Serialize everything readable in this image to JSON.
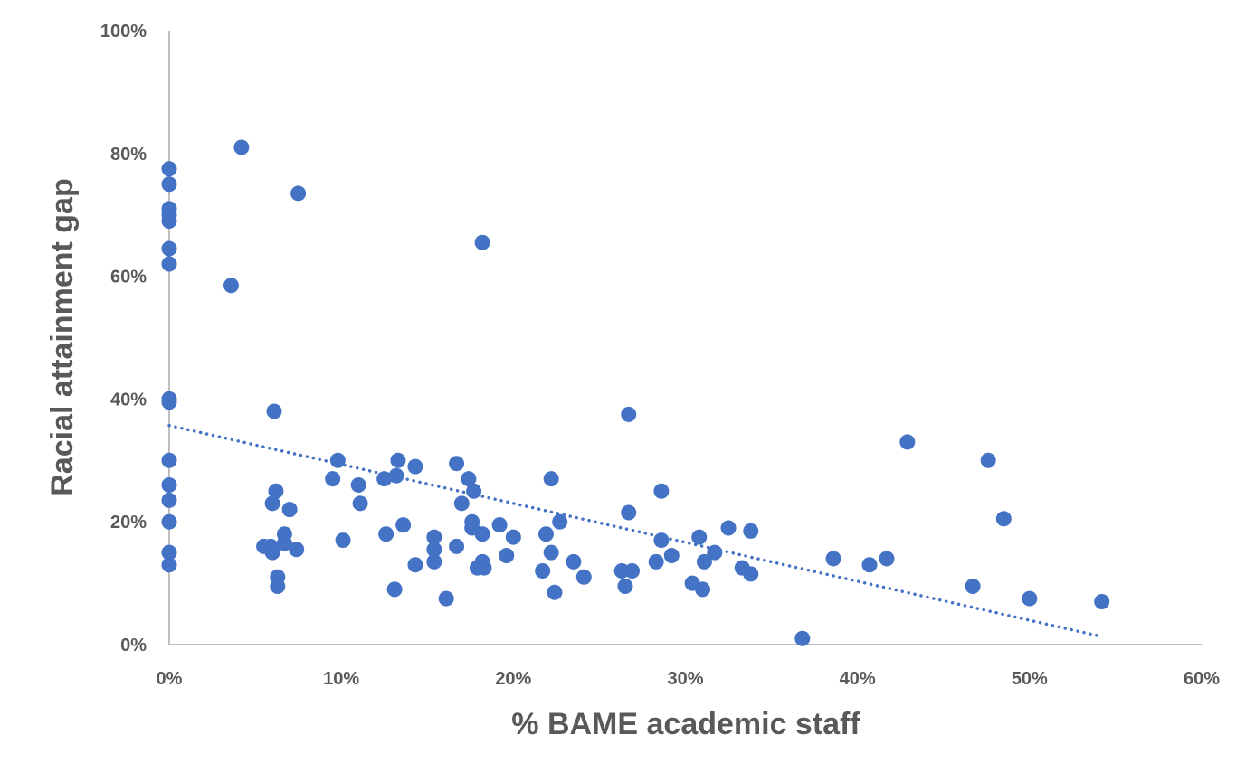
{
  "chart_data": {
    "type": "scatter",
    "title": "",
    "xlabel": "% BAME academic staff",
    "ylabel": "Racial attainment gap",
    "xlim": [
      0,
      60
    ],
    "ylim": [
      0,
      100
    ],
    "x_ticks": [
      "0%",
      "10%",
      "20%",
      "30%",
      "40%",
      "50%",
      "60%"
    ],
    "y_ticks": [
      "0%",
      "20%",
      "40%",
      "60%",
      "80%",
      "100%"
    ],
    "grid": false,
    "legend": "none",
    "marker_color": "#4472C4",
    "trendline": {
      "type": "linear",
      "style": "dotted",
      "color": "#4472C4",
      "x": [
        0,
        54.2
      ],
      "y": [
        35.7,
        1.3
      ]
    },
    "series": [
      {
        "points": [
          [
            0,
            77.5
          ],
          [
            0,
            75
          ],
          [
            0,
            71
          ],
          [
            0,
            70
          ],
          [
            0,
            69
          ],
          [
            0,
            64.5
          ],
          [
            0,
            62
          ],
          [
            0,
            40
          ],
          [
            0,
            39.5
          ],
          [
            0,
            30
          ],
          [
            0,
            26
          ],
          [
            0,
            23.5
          ],
          [
            0,
            20
          ],
          [
            0,
            15
          ],
          [
            0,
            13
          ],
          [
            4.2,
            81
          ],
          [
            7.5,
            73.5
          ],
          [
            18.2,
            65.5
          ],
          [
            3.6,
            58.5
          ],
          [
            6.1,
            38
          ],
          [
            26.7,
            37.5
          ],
          [
            42.9,
            33
          ],
          [
            47.6,
            30
          ],
          [
            9.8,
            30
          ],
          [
            13.3,
            30
          ],
          [
            14.3,
            29
          ],
          [
            16.7,
            29.5
          ],
          [
            9.5,
            27
          ],
          [
            11,
            26
          ],
          [
            12.5,
            27
          ],
          [
            13.2,
            27.5
          ],
          [
            17.4,
            27
          ],
          [
            22.2,
            27
          ],
          [
            17.7,
            25
          ],
          [
            28.6,
            25
          ],
          [
            6.2,
            25
          ],
          [
            6,
            23
          ],
          [
            11.1,
            23
          ],
          [
            17,
            23
          ],
          [
            7,
            22
          ],
          [
            26.7,
            21.5
          ],
          [
            48.5,
            20.5
          ],
          [
            13.6,
            19.5
          ],
          [
            17.6,
            20
          ],
          [
            19.2,
            19.5
          ],
          [
            22.7,
            20
          ],
          [
            32.5,
            19
          ],
          [
            33.8,
            18.5
          ],
          [
            6.7,
            18
          ],
          [
            12.6,
            18
          ],
          [
            15.4,
            17.5
          ],
          [
            17.6,
            19
          ],
          [
            18.2,
            18
          ],
          [
            20,
            17.5
          ],
          [
            21.9,
            18
          ],
          [
            28.6,
            17
          ],
          [
            30.8,
            17.5
          ],
          [
            5.5,
            16
          ],
          [
            5.9,
            16
          ],
          [
            6,
            15
          ],
          [
            6.7,
            16.5
          ],
          [
            7.4,
            15.5
          ],
          [
            10.1,
            17
          ],
          [
            15.4,
            15.5
          ],
          [
            16.7,
            16
          ],
          [
            19.6,
            14.5
          ],
          [
            22.2,
            15
          ],
          [
            29.2,
            14.5
          ],
          [
            31.7,
            15
          ],
          [
            38.6,
            14
          ],
          [
            41.7,
            14
          ],
          [
            14.3,
            13
          ],
          [
            15.4,
            13.5
          ],
          [
            18.2,
            13.5
          ],
          [
            17.9,
            12.5
          ],
          [
            18.3,
            12.5
          ],
          [
            21.7,
            12
          ],
          [
            23.5,
            13.5
          ],
          [
            24.1,
            11
          ],
          [
            26.3,
            12
          ],
          [
            26.9,
            12
          ],
          [
            28.3,
            13.5
          ],
          [
            31.1,
            13.5
          ],
          [
            33.3,
            12.5
          ],
          [
            33.8,
            11.5
          ],
          [
            40.7,
            13
          ],
          [
            6.3,
            11
          ],
          [
            6.3,
            9.5
          ],
          [
            13.1,
            9
          ],
          [
            16.1,
            7.5
          ],
          [
            22.4,
            8.5
          ],
          [
            26.5,
            9.5
          ],
          [
            30.4,
            10
          ],
          [
            31,
            9
          ],
          [
            46.7,
            9.5
          ],
          [
            50,
            7.5
          ],
          [
            54.2,
            7
          ],
          [
            36.8,
            1
          ]
        ]
      }
    ]
  }
}
